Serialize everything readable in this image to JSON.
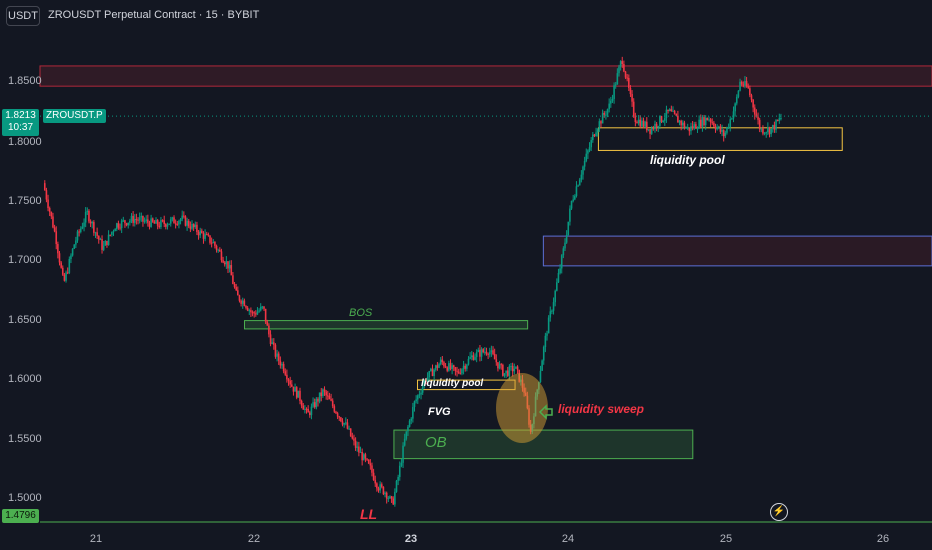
{
  "header": {
    "currency_button": "USDT",
    "title": "ZROUSDT Perpetual Contract · 15 · BYBIT"
  },
  "price_tag": {
    "price": "1.8213",
    "countdown": "10:37",
    "symbol": "ZROUSDT.P"
  },
  "low_tag": "1.4796",
  "colors": {
    "background": "#131722",
    "up": "#089981",
    "down": "#f23645",
    "zone_red": "#f23645",
    "zone_blue": "#5b6fd6",
    "zone_green": "#4caf50",
    "zone_yellow": "#f5c542",
    "sweep": "#d6a034"
  },
  "icons": {
    "alert": "lightning-icon",
    "sweep_marker": "hand-pointer-icon"
  },
  "annotations": {
    "bos": "BOS",
    "liquidity_pool_low": "liquidity pool",
    "fvg": "FVG",
    "ob": "OB",
    "liquidity_sweep": "liquidity sweep",
    "liquidity_pool_high": "liquidity pool",
    "ll": "LL"
  },
  "chart_data": {
    "type": "candlestick",
    "title": "ZROUSDT Perpetual Contract · 15 · BYBIT",
    "y_tick_labels": [
      "1.8500",
      "1.8000",
      "1.7500",
      "1.7000",
      "1.6500",
      "1.6000",
      "1.5500",
      "1.5000"
    ],
    "x_tick_labels": [
      "21",
      "22",
      "23",
      "24",
      "25",
      "26"
    ],
    "ylim": [
      1.478,
      1.89
    ],
    "x_unit": "day",
    "xlim": [
      20.6,
      26.3
    ],
    "grid": false,
    "last_price": 1.8213,
    "low_label_price": 1.4796,
    "zones": [
      {
        "name": "supply-zone-top",
        "x": [
          20.6,
          26.3
        ],
        "y": [
          1.8465,
          1.8635
        ],
        "color": "red"
      },
      {
        "name": "liquidity-pool-high-box",
        "x": [
          24.15,
          25.7
        ],
        "y": [
          1.7925,
          1.8115
        ],
        "color": "yellow"
      },
      {
        "name": "fvg-box-upper",
        "x": [
          23.8,
          26.3
        ],
        "y": [
          1.6955,
          1.7205
        ],
        "color": "blue"
      },
      {
        "name": "bos-box",
        "x": [
          21.9,
          23.7
        ],
        "y": [
          1.6425,
          1.6495
        ],
        "color": "green"
      },
      {
        "name": "liquidity-pool-low-box",
        "x": [
          23.0,
          23.62
        ],
        "y": [
          1.5915,
          1.5995
        ],
        "color": "yellow"
      },
      {
        "name": "ob-box",
        "x": [
          22.85,
          24.75
        ],
        "y": [
          1.5335,
          1.5575
        ],
        "color": "green"
      }
    ],
    "price_path": [
      [
        20.62,
        1.765
      ],
      [
        20.7,
        1.72
      ],
      [
        20.75,
        1.68
      ],
      [
        20.82,
        1.715
      ],
      [
        20.9,
        1.74
      ],
      [
        21.0,
        1.71
      ],
      [
        21.08,
        1.73
      ],
      [
        21.2,
        1.735
      ],
      [
        21.35,
        1.73
      ],
      [
        21.5,
        1.735
      ],
      [
        21.6,
        1.725
      ],
      [
        21.7,
        1.715
      ],
      [
        21.8,
        1.695
      ],
      [
        21.85,
        1.67
      ],
      [
        21.9,
        1.665
      ],
      [
        21.95,
        1.655
      ],
      [
        22.02,
        1.66
      ],
      [
        22.05,
        1.64
      ],
      [
        22.1,
        1.62
      ],
      [
        22.15,
        1.61
      ],
      [
        22.2,
        1.595
      ],
      [
        22.25,
        1.585
      ],
      [
        22.3,
        1.57
      ],
      [
        22.35,
        1.58
      ],
      [
        22.4,
        1.59
      ],
      [
        22.45,
        1.58
      ],
      [
        22.5,
        1.57
      ],
      [
        22.55,
        1.56
      ],
      [
        22.6,
        1.545
      ],
      [
        22.65,
        1.535
      ],
      [
        22.7,
        1.525
      ],
      [
        22.75,
        1.51
      ],
      [
        22.8,
        1.505
      ],
      [
        22.84,
        1.495
      ],
      [
        22.88,
        1.52
      ],
      [
        22.92,
        1.55
      ],
      [
        22.98,
        1.58
      ],
      [
        23.05,
        1.6
      ],
      [
        23.15,
        1.615
      ],
      [
        23.25,
        1.605
      ],
      [
        23.35,
        1.62
      ],
      [
        23.45,
        1.625
      ],
      [
        23.55,
        1.605
      ],
      [
        23.62,
        1.61
      ],
      [
        23.68,
        1.59
      ],
      [
        23.72,
        1.555
      ],
      [
        23.77,
        1.6
      ],
      [
        23.82,
        1.64
      ],
      [
        23.87,
        1.67
      ],
      [
        23.93,
        1.71
      ],
      [
        23.98,
        1.75
      ],
      [
        24.03,
        1.77
      ],
      [
        24.08,
        1.79
      ],
      [
        24.13,
        1.81
      ],
      [
        24.22,
        1.83
      ],
      [
        24.3,
        1.87
      ],
      [
        24.38,
        1.82
      ],
      [
        24.48,
        1.81
      ],
      [
        24.6,
        1.825
      ],
      [
        24.72,
        1.81
      ],
      [
        24.85,
        1.82
      ],
      [
        24.95,
        1.805
      ],
      [
        25.02,
        1.83
      ],
      [
        25.05,
        1.85
      ],
      [
        25.1,
        1.845
      ],
      [
        25.18,
        1.81
      ],
      [
        25.25,
        1.81
      ],
      [
        25.32,
        1.8213
      ]
    ]
  }
}
